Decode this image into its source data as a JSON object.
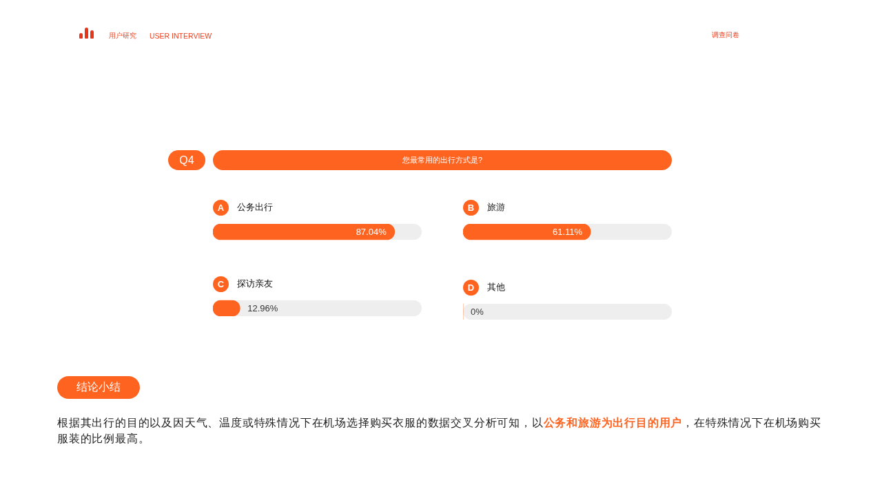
{
  "chart_data": [
    {
      "type": "bar",
      "orientation": "horizontal",
      "title": "您最常用的出行方式是?",
      "categories": [
        "公务出行",
        "探访亲友"
      ],
      "values": [
        87.04,
        12.96
      ],
      "value_labels": [
        "87.04%",
        "12.96%"
      ],
      "color": "#ff6320",
      "xlim": [
        0,
        100
      ],
      "tick_labels": "y",
      "annotations": [
        "A",
        "C",
        "用户研究",
        "USER INTERVIEW",
        "调查问卷",
        "Q4",
        "结论小结",
        "根据其出行的目的以及因天气、温度或特殊情况下在机场选择购买衣服的数据交叉分析可知，以",
        "公务和旅游为出行目的用户",
        "，在特殊情况下在机场购买",
        "服装的比例最高。"
      ]
    },
    {
      "type": "bar",
      "orientation": "horizontal",
      "categories": [
        "旅游",
        "其他"
      ],
      "values": [
        61.11,
        0
      ],
      "value_labels": [
        "61.11%",
        "0%"
      ],
      "color": "#ff6320",
      "xlim": [
        0,
        100
      ],
      "tick_labels": "y",
      "annotations": [
        "B",
        "D"
      ]
    }
  ]
}
